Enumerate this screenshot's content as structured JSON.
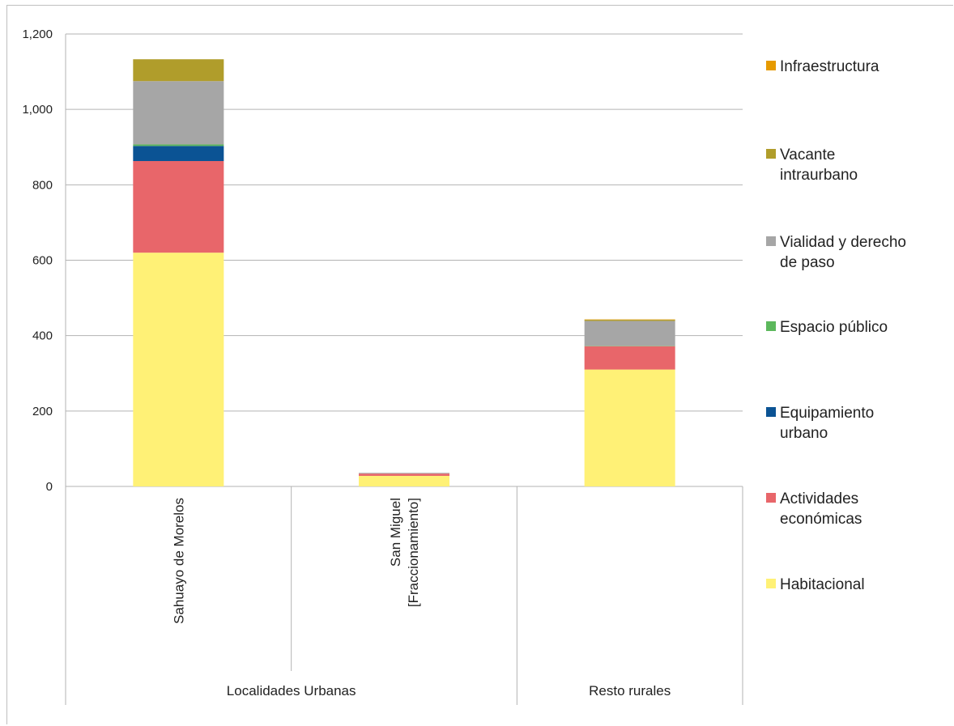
{
  "chart_data": {
    "type": "bar",
    "stacked": true,
    "categories": [
      "Sahuayo de Morelos",
      "San Miguel [Fraccionamiento]",
      ""
    ],
    "category_label_lines": [
      [
        "Sahuayo de Morelos"
      ],
      [
        "San Miguel",
        "[Fraccionamiento]"
      ],
      [
        ""
      ]
    ],
    "groups": [
      {
        "label": "Localidades Urbanas",
        "members": [
          0,
          1
        ]
      },
      {
        "label": "Resto rurales",
        "members": [
          2
        ]
      }
    ],
    "ylim": [
      0,
      1200
    ],
    "yticks": [
      0,
      200,
      400,
      600,
      800,
      1000,
      1200
    ],
    "ytick_labels": [
      "0",
      "200",
      "400",
      "600",
      "800",
      "1,000",
      "1,200"
    ],
    "grid": true,
    "legend_position": "right",
    "series": [
      {
        "name": "Habitacional",
        "color": "#FFF176",
        "values": [
          620,
          28,
          310
        ]
      },
      {
        "name": "Actividades económicas",
        "color": "#E8666A",
        "values": [
          243,
          6,
          62
        ]
      },
      {
        "name": "Equipamiento urbano",
        "color": "#0B5394",
        "values": [
          40,
          0,
          0
        ]
      },
      {
        "name": "Espacio público",
        "color": "#5CB85C",
        "values": [
          4,
          0,
          1
        ]
      },
      {
        "name": "Vialidad y derecho de paso",
        "color": "#A6A6A6",
        "values": [
          168,
          2,
          66
        ]
      },
      {
        "name": "Vacante intraurbano",
        "color": "#B09D2B",
        "values": [
          58,
          0,
          3
        ]
      },
      {
        "name": "Infraestructura",
        "color": "#E69A00",
        "values": [
          0,
          0,
          1
        ]
      }
    ],
    "legend_order": [
      6,
      5,
      4,
      3,
      2,
      1,
      0
    ],
    "legend_label_lines": [
      [
        "Infraestructura"
      ],
      [
        "Vacante",
        "intraurbano"
      ],
      [
        "Vialidad y derecho",
        "de paso"
      ],
      [
        "Espacio público"
      ],
      [
        "Equipamiento",
        "urbano"
      ],
      [
        "Actividades",
        "económicas"
      ],
      [
        "Habitacional"
      ]
    ]
  }
}
